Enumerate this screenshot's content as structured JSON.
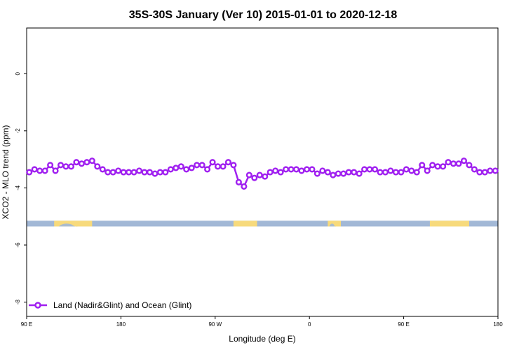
{
  "chart_data": {
    "type": "line",
    "title": "35S-30S January (Ver 10)   2015-01-01 to 2020-12-18",
    "xlabel": "Longitude (deg E)",
    "ylabel": "XCO2 - MLO trend (ppm)",
    "xlim": [
      90,
      450
    ],
    "ylim": [
      -8.5,
      1.6
    ],
    "x_ticks": [
      {
        "value": 90,
        "label": "90 E"
      },
      {
        "value": 162,
        "label": "180"
      },
      {
        "value": 234,
        "label": "90 W"
      },
      {
        "value": 306,
        "label": "0"
      },
      {
        "value": 378,
        "label": "90 E"
      },
      {
        "value": 450,
        "label": "180"
      }
    ],
    "y_ticks": [
      {
        "value": 0,
        "label": "0"
      },
      {
        "value": -2,
        "label": "-2"
      },
      {
        "value": -4,
        "label": "-4"
      },
      {
        "value": -6,
        "label": "-6"
      },
      {
        "value": -8,
        "label": "-8"
      }
    ],
    "series": [
      {
        "name": "Land (Nadir&Glint) and Ocean (Glint)",
        "color": "#a020f0",
        "x": [
          92,
          96,
          100,
          104,
          108,
          112,
          116,
          120,
          124,
          128,
          132,
          136,
          140,
          144,
          148,
          152,
          156,
          160,
          164,
          168,
          172,
          176,
          180,
          184,
          188,
          192,
          196,
          200,
          204,
          208,
          212,
          216,
          220,
          224,
          228,
          232,
          236,
          240,
          244,
          248,
          252,
          256,
          260,
          264,
          268,
          272,
          276,
          280,
          284,
          288,
          292,
          296,
          300,
          304,
          308,
          312,
          316,
          320,
          324,
          328,
          332,
          336,
          340,
          344,
          348,
          352,
          356,
          360,
          364,
          368,
          372,
          376,
          380,
          384,
          388,
          392,
          396,
          400,
          404,
          408,
          412,
          416,
          420,
          424,
          428,
          432,
          436,
          440,
          444,
          448
        ],
        "y": [
          -3.45,
          -3.35,
          -3.4,
          -3.4,
          -3.2,
          -3.4,
          -3.2,
          -3.25,
          -3.25,
          -3.1,
          -3.15,
          -3.1,
          -3.05,
          -3.25,
          -3.35,
          -3.45,
          -3.45,
          -3.4,
          -3.45,
          -3.45,
          -3.45,
          -3.4,
          -3.45,
          -3.45,
          -3.5,
          -3.45,
          -3.45,
          -3.35,
          -3.3,
          -3.25,
          -3.35,
          -3.3,
          -3.2,
          -3.2,
          -3.35,
          -3.1,
          -3.25,
          -3.25,
          -3.1,
          -3.2,
          -3.8,
          -3.95,
          -3.55,
          -3.65,
          -3.55,
          -3.6,
          -3.45,
          -3.4,
          -3.45,
          -3.35,
          -3.35,
          -3.35,
          -3.4,
          -3.35,
          -3.35,
          -3.5,
          -3.4,
          -3.45,
          -3.55,
          -3.5,
          -3.5,
          -3.45,
          -3.45,
          -3.5,
          -3.35,
          -3.35,
          -3.35,
          -3.45,
          -3.45,
          -3.4,
          -3.45,
          -3.45,
          -3.35,
          -3.4,
          -3.45,
          -3.2,
          -3.4,
          -3.2,
          -3.25,
          -3.25,
          -3.1,
          -3.15,
          -3.15,
          -3.05,
          -3.2,
          -3.35,
          -3.45,
          -3.45,
          -3.4,
          -3.4
        ]
      }
    ],
    "land_spans": [
      [
        111,
        140
      ],
      [
        248,
        266
      ],
      [
        320,
        330
      ],
      [
        398,
        428
      ]
    ],
    "band_y": [
      -5.15,
      -5.35
    ],
    "legend": {
      "position": "bottom-left"
    },
    "colors": {
      "ocean": "#a2b8d6",
      "land": "#f7da7c",
      "island": "#a2b8d6",
      "line": "#a020f0",
      "frame": "#000000"
    }
  }
}
